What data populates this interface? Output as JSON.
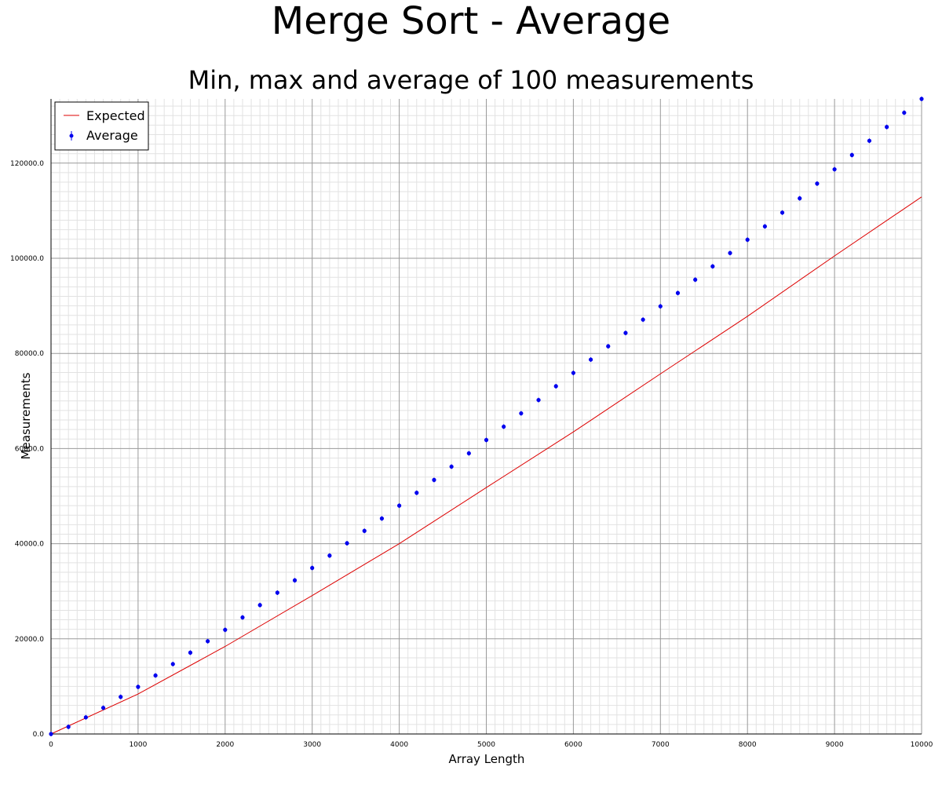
{
  "chart_data": {
    "type": "scatter",
    "title": "Merge Sort - Average",
    "subtitle": "Min, max and average of 100 measurements",
    "xlabel": "Array Length",
    "ylabel": "Measurements",
    "xlim": [
      0,
      10000
    ],
    "ylim": [
      0,
      133500
    ],
    "x_ticks": [
      0,
      1000,
      2000,
      3000,
      4000,
      5000,
      6000,
      7000,
      8000,
      9000,
      10000
    ],
    "x_tick_labels": [
      "0",
      "1000",
      "2000",
      "3000",
      "4000",
      "5000",
      "6000",
      "7000",
      "8000",
      "9000",
      "10000"
    ],
    "y_ticks": [
      0,
      20000,
      40000,
      60000,
      80000,
      100000,
      120000
    ],
    "y_tick_labels": [
      "0.0",
      "20000.0",
      "40000.0",
      "60000.0",
      "80000.0",
      "100000.0",
      "120000.0"
    ],
    "grid": true,
    "legend_position": "top-left",
    "series": [
      {
        "name": "Expected",
        "kind": "line",
        "color": "#dd0000",
        "x": [
          0,
          1000,
          2000,
          3000,
          4000,
          5000,
          6000,
          7000,
          8000,
          9000,
          10000
        ],
        "y": [
          0,
          8400,
          18400,
          29100,
          40000,
          51800,
          63500,
          75700,
          87800,
          100500,
          112900
        ]
      },
      {
        "name": "Average",
        "kind": "points",
        "color": "#0000ee",
        "x": [
          0,
          200,
          400,
          600,
          800,
          1000,
          1200,
          1400,
          1600,
          1800,
          2000,
          2200,
          2400,
          2600,
          2800,
          3000,
          3200,
          3400,
          3600,
          3800,
          4000,
          4200,
          4400,
          4600,
          4800,
          5000,
          5200,
          5400,
          5600,
          5800,
          6000,
          6200,
          6400,
          6600,
          6800,
          7000,
          7200,
          7400,
          7600,
          7800,
          8000,
          8200,
          8400,
          8600,
          8800,
          9000,
          9200,
          9400,
          9600,
          9800,
          10000
        ],
        "y": [
          0,
          1500,
          3500,
          5500,
          7800,
          9900,
          12300,
          14700,
          17100,
          19500,
          21900,
          24500,
          27100,
          29700,
          32300,
          34900,
          37500,
          40100,
          42700,
          45300,
          48000,
          50700,
          53400,
          56200,
          59000,
          61800,
          64600,
          67400,
          70200,
          73100,
          75900,
          78700,
          81500,
          84300,
          87100,
          89900,
          92700,
          95500,
          98300,
          101100,
          103900,
          106700,
          109600,
          112600,
          115700,
          118700,
          121700,
          124700,
          127600,
          130600,
          133500
        ]
      }
    ]
  }
}
